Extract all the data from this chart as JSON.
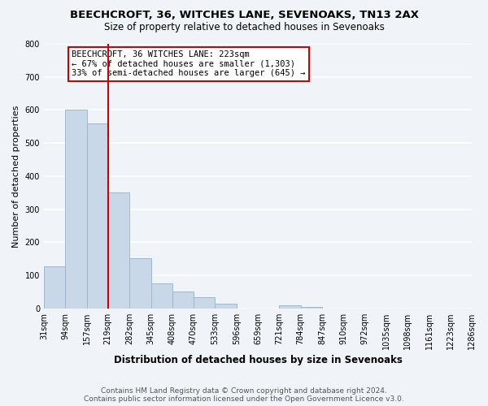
{
  "title1": "BEECHCROFT, 36, WITCHES LANE, SEVENOAKS, TN13 2AX",
  "title2": "Size of property relative to detached houses in Sevenoaks",
  "xlabel": "Distribution of detached houses by size in Sevenoaks",
  "ylabel": "Number of detached properties",
  "bar_edges": [
    31,
    94,
    157,
    219,
    282,
    345,
    408,
    470,
    533,
    596,
    659,
    721,
    784,
    847,
    910,
    972,
    1035,
    1098,
    1161,
    1223,
    1286
  ],
  "bar_heights": [
    128,
    600,
    560,
    350,
    152,
    75,
    50,
    33,
    14,
    0,
    0,
    10,
    5,
    0,
    0,
    0,
    0,
    0,
    0,
    0
  ],
  "tick_labels": [
    "31sqm",
    "94sqm",
    "157sqm",
    "219sqm",
    "282sqm",
    "345sqm",
    "408sqm",
    "470sqm",
    "533sqm",
    "596sqm",
    "659sqm",
    "721sqm",
    "784sqm",
    "847sqm",
    "910sqm",
    "972sqm",
    "1035sqm",
    "1098sqm",
    "1161sqm",
    "1223sqm",
    "1286sqm"
  ],
  "bar_color": "#c8d8e8",
  "bar_edge_color": "#a0b8cc",
  "reference_line_x": 219,
  "reference_line_color": "#cc0000",
  "ylim": [
    0,
    800
  ],
  "yticks": [
    0,
    100,
    200,
    300,
    400,
    500,
    600,
    700,
    800
  ],
  "annotation_title": "BEECHCROFT, 36 WITCHES LANE: 223sqm",
  "annotation_line1": "← 67% of detached houses are smaller (1,303)",
  "annotation_line2": "33% of semi-detached houses are larger (645) →",
  "footer1": "Contains HM Land Registry data © Crown copyright and database right 2024.",
  "footer2": "Contains public sector information licensed under the Open Government Licence v3.0.",
  "background_color": "#f0f4f8",
  "plot_bg_color": "#f0f4f8",
  "grid_color": "#ffffff",
  "title1_fontsize": 9.5,
  "title2_fontsize": 8.5,
  "xlabel_fontsize": 8.5,
  "ylabel_fontsize": 8.0,
  "tick_fontsize": 7.0,
  "footer_fontsize": 6.5,
  "annotation_fontsize": 7.5
}
